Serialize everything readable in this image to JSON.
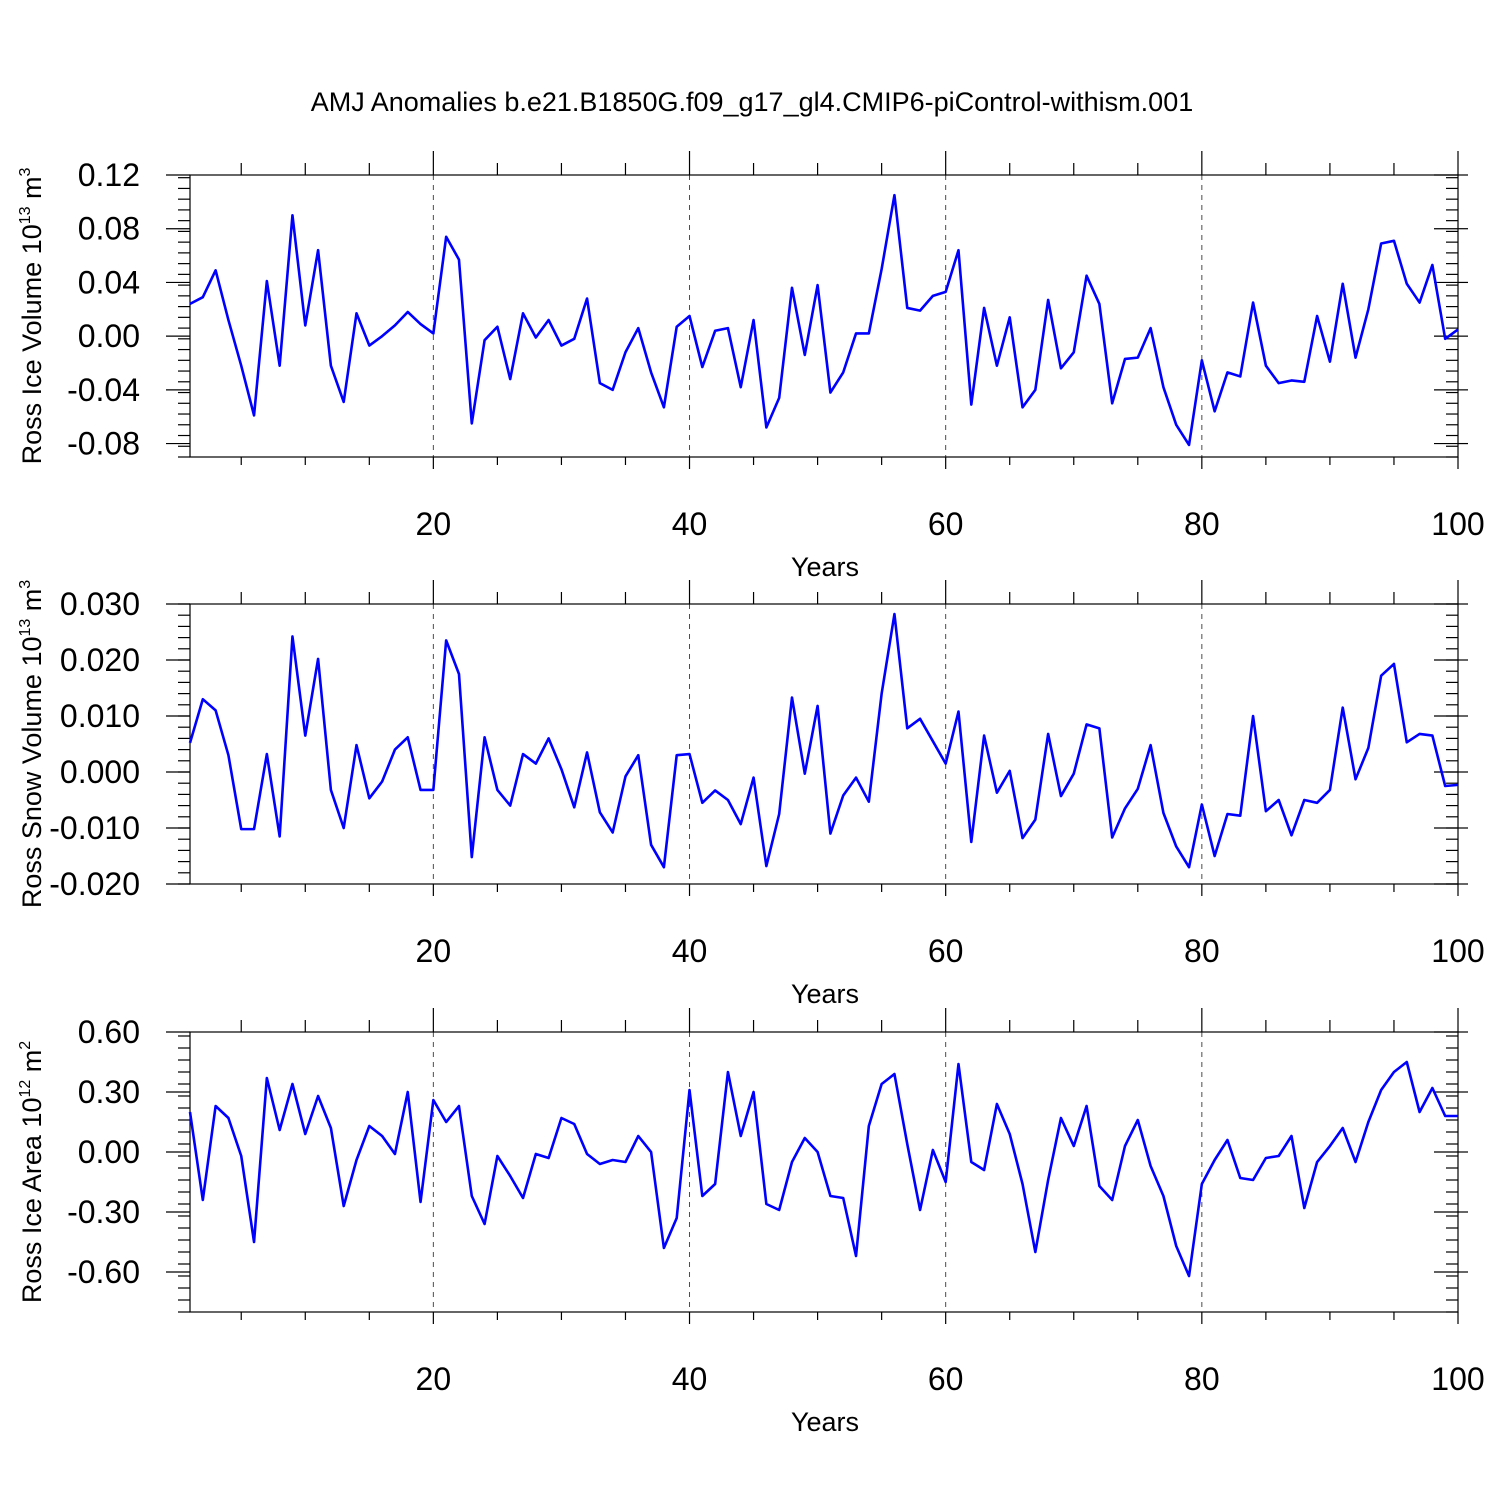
{
  "chart_data": {
    "title": "AMJ Anomalies b.e21.B1850G.f09_g17_gl4.CMIP6-piControl-withism.001",
    "panels": [
      {
        "type": "line",
        "ylabel": "Ross Ice Volume 10",
        "ylabel_sup": "13",
        "ylabel_unit": " m",
        "ylabel_unit_sup": "3",
        "xlabel": "Years",
        "xlim": [
          1,
          100
        ],
        "ylim": [
          -0.09,
          0.12
        ],
        "xticks": [
          20,
          40,
          60,
          80,
          100
        ],
        "yticks": [
          0.12,
          0.08,
          0.04,
          0.0,
          -0.04,
          -0.08
        ],
        "ytick_labels": [
          "0.12",
          "0.08",
          "0.04",
          "0.00",
          "-0.04",
          "-0.08"
        ],
        "grid_x_dashed": [
          20,
          40,
          60,
          80
        ],
        "series": [
          {
            "color": "#0000ff",
            "x_start": 1,
            "values": [
              0.024,
              0.029,
              0.049,
              0.012,
              -0.022,
              -0.059,
              0.041,
              -0.022,
              0.09,
              0.008,
              0.064,
              -0.022,
              -0.049,
              0.017,
              -0.007,
              0.0,
              0.008,
              0.018,
              0.009,
              0.002,
              0.074,
              0.057,
              -0.065,
              -0.003,
              0.007,
              -0.032,
              0.017,
              -0.001,
              0.012,
              -0.007,
              -0.002,
              0.028,
              -0.035,
              -0.04,
              -0.012,
              0.006,
              -0.027,
              -0.053,
              0.007,
              0.015,
              -0.023,
              0.004,
              0.006,
              -0.038,
              0.012,
              -0.068,
              -0.046,
              0.036,
              -0.014,
              0.038,
              -0.042,
              -0.027,
              0.002,
              0.002,
              0.05,
              0.105,
              0.021,
              0.019,
              0.03,
              0.033,
              0.064,
              -0.051,
              0.021,
              -0.022,
              0.014,
              -0.053,
              -0.04,
              0.027,
              -0.024,
              -0.012,
              0.045,
              0.024,
              -0.05,
              -0.017,
              -0.016,
              0.006,
              -0.038,
              -0.066,
              -0.081,
              -0.018,
              -0.056,
              -0.027,
              -0.03,
              0.025,
              -0.022,
              -0.035,
              -0.033,
              -0.034,
              0.015,
              -0.019,
              0.039,
              -0.016,
              0.02,
              0.069,
              0.071,
              0.039,
              0.025,
              0.053,
              -0.002,
              0.005
            ]
          }
        ]
      },
      {
        "type": "line",
        "ylabel": "Ross Snow Volume 10",
        "ylabel_sup": "13",
        "ylabel_unit": " m",
        "ylabel_unit_sup": "3",
        "xlabel": "Years",
        "xlim": [
          1,
          100
        ],
        "ylim": [
          -0.02,
          0.03
        ],
        "xticks": [
          20,
          40,
          60,
          80,
          100
        ],
        "yticks": [
          0.03,
          0.02,
          0.01,
          0.0,
          -0.01,
          -0.02
        ],
        "ytick_labels": [
          "0.030",
          "0.020",
          "0.010",
          "0.000",
          "-0.010",
          "-0.020"
        ],
        "grid_x_dashed": [
          20,
          40,
          60,
          80
        ],
        "series": [
          {
            "color": "#0000ff",
            "x_start": 1,
            "values": [
              0.0052,
              0.013,
              0.011,
              0.003,
              -0.0102,
              -0.0102,
              0.0032,
              -0.0115,
              0.0242,
              0.0065,
              0.0202,
              -0.0032,
              -0.01,
              0.0048,
              -0.0047,
              -0.0017,
              0.004,
              0.0062,
              -0.0032,
              -0.0032,
              0.0235,
              0.0175,
              -0.0152,
              0.0062,
              -0.0032,
              -0.006,
              0.0032,
              0.0015,
              0.006,
              0.0005,
              -0.0063,
              0.0035,
              -0.0072,
              -0.0108,
              -0.0008,
              0.003,
              -0.013,
              -0.017,
              0.003,
              0.0032,
              -0.0055,
              -0.0033,
              -0.005,
              -0.0093,
              -0.001,
              -0.0168,
              -0.0075,
              0.0133,
              -0.0003,
              0.0118,
              -0.011,
              -0.0042,
              -0.001,
              -0.0053,
              0.014,
              0.0282,
              0.0078,
              0.0095,
              0.0055,
              0.0015,
              0.0108,
              -0.0125,
              0.0065,
              -0.0037,
              0.0002,
              -0.0118,
              -0.0085,
              0.0068,
              -0.0043,
              -0.0003,
              0.0085,
              0.0078,
              -0.0117,
              -0.0065,
              -0.003,
              0.0048,
              -0.0073,
              -0.0133,
              -0.017,
              -0.0058,
              -0.015,
              -0.0075,
              -0.0078,
              0.01,
              -0.007,
              -0.005,
              -0.0113,
              -0.005,
              -0.0055,
              -0.0032,
              0.0115,
              -0.0013,
              0.0043,
              0.0172,
              0.0193,
              0.0053,
              0.0068,
              0.0065,
              -0.0025,
              -0.0023
            ]
          }
        ]
      },
      {
        "type": "line",
        "ylabel": "Ross Ice Area 10",
        "ylabel_sup": "12",
        "ylabel_unit": " m",
        "ylabel_unit_sup": "2",
        "xlabel": "Years",
        "xlim": [
          1,
          100
        ],
        "ylim": [
          -0.8,
          0.6
        ],
        "xticks": [
          20,
          40,
          60,
          80,
          100
        ],
        "yticks": [
          0.6,
          0.3,
          0.0,
          -0.3,
          -0.6
        ],
        "ytick_labels": [
          "0.60",
          "0.30",
          "0.00",
          "-0.30",
          "-0.60"
        ],
        "grid_x_dashed": [
          20,
          40,
          60,
          80
        ],
        "series": [
          {
            "color": "#0000ff",
            "x_start": 1,
            "values": [
              0.2,
              -0.24,
              0.23,
              0.17,
              -0.02,
              -0.45,
              0.37,
              0.11,
              0.34,
              0.09,
              0.28,
              0.12,
              -0.27,
              -0.04,
              0.13,
              0.08,
              -0.01,
              0.3,
              -0.25,
              0.26,
              0.15,
              0.23,
              -0.22,
              -0.36,
              -0.02,
              -0.12,
              -0.23,
              -0.01,
              -0.03,
              0.17,
              0.14,
              -0.01,
              -0.06,
              -0.04,
              -0.05,
              0.08,
              0.0,
              -0.48,
              -0.33,
              0.31,
              -0.22,
              -0.16,
              0.4,
              0.08,
              0.3,
              -0.26,
              -0.29,
              -0.05,
              0.07,
              0.0,
              -0.22,
              -0.23,
              -0.52,
              0.13,
              0.34,
              0.39,
              0.04,
              -0.29,
              0.01,
              -0.15,
              0.44,
              -0.05,
              -0.09,
              0.24,
              0.09,
              -0.16,
              -0.5,
              -0.14,
              0.17,
              0.03,
              0.23,
              -0.17,
              -0.24,
              0.03,
              0.16,
              -0.07,
              -0.22,
              -0.47,
              -0.62,
              -0.16,
              -0.04,
              0.06,
              -0.13,
              -0.14,
              -0.03,
              -0.02,
              0.08,
              -0.28,
              -0.05,
              0.03,
              0.12,
              -0.05,
              0.15,
              0.31,
              0.4,
              0.45,
              0.2,
              0.32,
              0.18,
              0.18
            ]
          }
        ]
      }
    ]
  }
}
